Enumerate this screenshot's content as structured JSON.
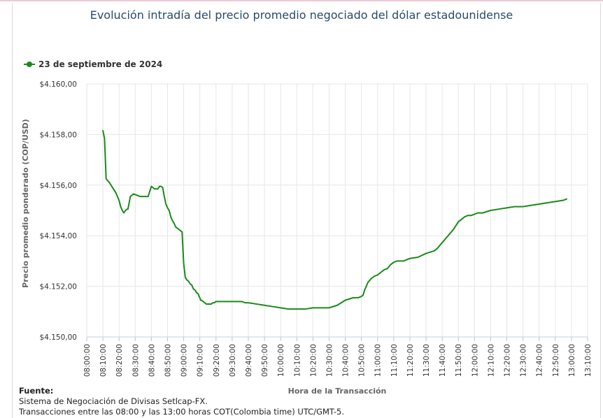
{
  "title": "Evolución intradía del precio promedio negociado del dólar estadounidense",
  "legend": {
    "label": "23 de septiembre de 2024"
  },
  "footer": {
    "label": "Fuente:",
    "line1": "Sistema de Negociación de Divisas Setlcap-FX.",
    "line2": "Transacciones entre las 08:00 y las 13:00 horas COT(Colombia time) UTC/GMT-5."
  },
  "colors": {
    "series": "#1a8a1a",
    "title": "#274b6d",
    "grid": "#e6e6e6"
  },
  "chart_data": {
    "type": "line",
    "title": "Evolución intradía del precio promedio negociado del dólar estadounidense",
    "xlabel": "Hora de la Transacción",
    "ylabel": "Precio promedio ponderado (COP/USD)",
    "ylim": [
      4150,
      4160
    ],
    "xlim": [
      "08:00:00",
      "13:10:00"
    ],
    "grid": true,
    "legend_position": "top-left",
    "y_ticks": [
      "$4.150,00",
      "$4.152,00",
      "$4.154,00",
      "$4.156,00",
      "$4.158,00",
      "$4.160,00"
    ],
    "x_ticks": [
      "08:00:00",
      "08:10:00",
      "08:20:00",
      "08:30:00",
      "08:40:00",
      "08:50:00",
      "09:00:00",
      "09:10:00",
      "09:20:00",
      "09:30:00",
      "09:40:00",
      "09:50:00",
      "10:00:00",
      "10:10:00",
      "10:20:00",
      "10:30:00",
      "10:40:00",
      "10:50:00",
      "11:00:00",
      "11:10:00",
      "11:20:00",
      "11:30:00",
      "11:40:00",
      "11:50:00",
      "12:00:00",
      "12:10:00",
      "12:20:00",
      "12:30:00",
      "12:40:00",
      "12:50:00",
      "13:00:00",
      "13:10:00"
    ],
    "series": [
      {
        "name": "23 de septiembre de 2024",
        "x": [
          "08:10:00",
          "08:10:30",
          "08:11:00",
          "08:12:00",
          "08:14:00",
          "08:16:00",
          "08:18:00",
          "08:19:00",
          "08:20:00",
          "08:21:00",
          "08:22:00",
          "08:23:00",
          "08:24:00",
          "08:25:00",
          "08:25:30",
          "08:27:00",
          "08:29:00",
          "08:31:00",
          "08:33:00",
          "08:34:00",
          "08:35:00",
          "08:36:00",
          "08:37:00",
          "08:38:00",
          "08:39:00",
          "08:40:00",
          "08:41:00",
          "08:42:00",
          "08:43:00",
          "08:44:00",
          "08:45:00",
          "08:46:00",
          "08:47:00",
          "08:48:00",
          "08:49:00",
          "08:50:00",
          "08:51:00",
          "08:52:00",
          "08:53:00",
          "08:54:00",
          "08:55:00",
          "08:56:00",
          "08:57:00",
          "08:58:00",
          "08:59:00",
          "09:00:00",
          "09:01:00",
          "09:02:00",
          "09:03:00",
          "09:04:00",
          "09:05:00",
          "09:06:00",
          "09:07:00",
          "09:08:00",
          "09:09:00",
          "09:09:30",
          "09:10:00",
          "09:10:30",
          "09:11:00",
          "09:12:00",
          "09:13:00",
          "09:14:00",
          "09:15:00",
          "09:16:00",
          "09:17:00",
          "09:18:00",
          "09:19:00",
          "09:20:00",
          "09:22:00",
          "09:24:00",
          "09:25:00",
          "09:26:00",
          "09:28:00",
          "09:30:00",
          "09:32:00",
          "09:34:00",
          "09:36:00",
          "09:38:00",
          "09:40:00",
          "09:45:00",
          "09:50:00",
          "09:55:00",
          "10:00:00",
          "10:05:00",
          "10:10:00",
          "10:15:00",
          "10:20:00",
          "10:25:00",
          "10:30:00",
          "10:35:00",
          "10:40:00",
          "10:45:00",
          "10:48:00",
          "10:50:00",
          "10:51:00",
          "10:52:00",
          "10:53:00",
          "10:54:00",
          "10:56:00",
          "10:58:00",
          "11:00:00",
          "11:01:00",
          "11:02:00",
          "11:03:00",
          "11:04:00",
          "11:06:00",
          "11:08:00",
          "11:10:00",
          "11:12:00",
          "11:14:00",
          "11:16:00",
          "11:18:00",
          "11:20:00",
          "11:25:00",
          "11:30:00",
          "11:35:00",
          "11:37:00",
          "11:39:00",
          "11:41:00",
          "11:43:00",
          "11:45:00",
          "11:47:00",
          "11:48:00",
          "11:49:00",
          "11:50:00",
          "11:52:00",
          "11:54:00",
          "11:56:00",
          "11:58:00",
          "12:00:00",
          "12:02:00",
          "12:05:00",
          "12:10:00",
          "12:15:00",
          "12:20:00",
          "12:25:00",
          "12:30:00",
          "12:35:00",
          "12:40:00",
          "12:45:00",
          "12:50:00",
          "12:55:00",
          "12:57:00"
        ],
        "values": [
          4158.15,
          4158.0,
          4157.85,
          4156.25,
          4156.1,
          4155.9,
          4155.7,
          4155.55,
          4155.4,
          4155.15,
          4155.0,
          4154.9,
          4155.0,
          4155.05,
          4155.05,
          4155.55,
          4155.65,
          4155.6,
          4155.55,
          4155.55,
          4155.55,
          4155.55,
          4155.55,
          4155.55,
          4155.75,
          4155.95,
          4155.9,
          4155.85,
          4155.85,
          4155.85,
          4155.95,
          4155.95,
          4155.9,
          4155.55,
          4155.25,
          4155.1,
          4155.0,
          4154.75,
          4154.6,
          4154.5,
          4154.35,
          4154.3,
          4154.25,
          4154.2,
          4154.15,
          4152.9,
          4152.35,
          4152.25,
          4152.2,
          4152.1,
          4152.05,
          4151.9,
          4151.85,
          4151.75,
          4151.7,
          4151.6,
          4151.55,
          4151.45,
          4151.45,
          4151.4,
          4151.35,
          4151.3,
          4151.3,
          4151.3,
          4151.3,
          4151.35,
          4151.35,
          4151.4,
          4151.4,
          4151.4,
          4151.4,
          4151.4,
          4151.4,
          4151.4,
          4151.4,
          4151.4,
          4151.4,
          4151.35,
          4151.35,
          4151.3,
          4151.25,
          4151.2,
          4151.15,
          4151.1,
          4151.1,
          4151.1,
          4151.15,
          4151.15,
          4151.15,
          4151.25,
          4151.45,
          4151.55,
          4151.55,
          4151.6,
          4151.65,
          4151.85,
          4152.0,
          4152.15,
          4152.3,
          4152.4,
          4152.45,
          4152.5,
          4152.55,
          4152.6,
          4152.65,
          4152.7,
          4152.85,
          4152.95,
          4153.0,
          4153.0,
          4153.0,
          4153.05,
          4153.1,
          4153.15,
          4153.3,
          4153.4,
          4153.5,
          4153.65,
          4153.8,
          4153.95,
          4154.1,
          4154.25,
          4154.35,
          4154.45,
          4154.55,
          4154.65,
          4154.75,
          4154.8,
          4154.8,
          4154.85,
          4154.9,
          4154.9,
          4155.0,
          4155.05,
          4155.1,
          4155.15,
          4155.15,
          4155.2,
          4155.25,
          4155.3,
          4155.35,
          4155.4,
          4155.45
        ]
      }
    ]
  }
}
